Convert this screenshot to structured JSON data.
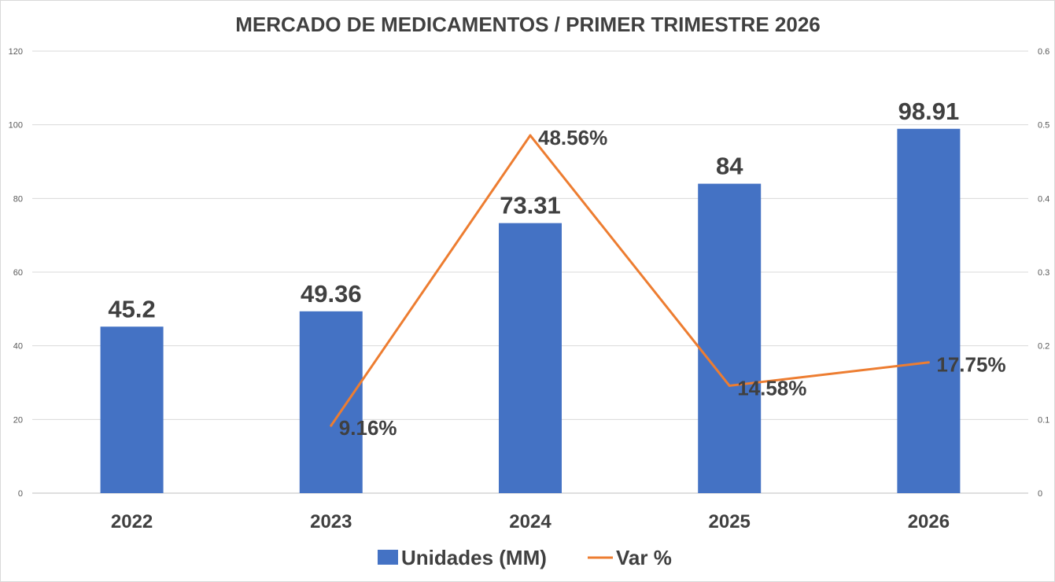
{
  "chart_data": {
    "type": "bar",
    "title": "MERCADO DE MEDICAMENTOS / PRIMER TRIMESTRE 2026",
    "categories": [
      "2022",
      "2023",
      "2024",
      "2025",
      "2026"
    ],
    "series": [
      {
        "name": "Unidades (MM)",
        "type": "bar",
        "axis": "left",
        "color": "#4472C4",
        "values": [
          45.2,
          49.36,
          73.31,
          84,
          98.91
        ],
        "labels": [
          "45.2",
          "49.36",
          "73.31",
          "84",
          "98.91"
        ]
      },
      {
        "name": "Var %",
        "type": "line",
        "axis": "right",
        "color": "#ED7D31",
        "values": [
          null,
          0.0916,
          0.4856,
          0.1458,
          0.1775
        ],
        "labels": [
          "",
          "9.16%",
          "48.56%",
          "14.58%",
          "17.75%"
        ]
      }
    ],
    "y_left": {
      "min": 0,
      "max": 120,
      "ticks": [
        "0",
        "20",
        "40",
        "60",
        "80",
        "100",
        "120"
      ]
    },
    "y_right": {
      "min": 0,
      "max": 0.6,
      "ticks": [
        "0",
        "0.1",
        "0.2",
        "0.3",
        "0.4",
        "0.5",
        "0.6"
      ]
    },
    "grid": true,
    "legend_position": "bottom"
  }
}
